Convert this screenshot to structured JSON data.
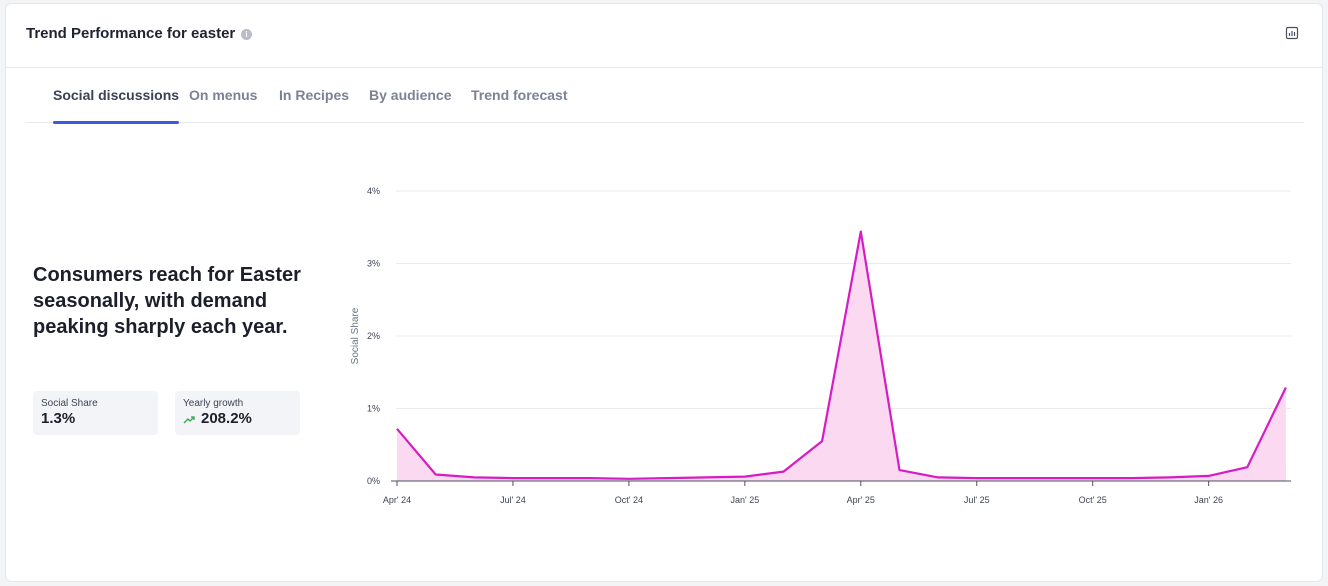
{
  "header": {
    "title": "Trend Performance for easter",
    "info_icon": "info-icon",
    "export_icon": "chart-export-icon"
  },
  "tabs": [
    {
      "label": "Social discussions",
      "active": true
    },
    {
      "label": "On menus",
      "active": false
    },
    {
      "label": "In Recipes",
      "active": false
    },
    {
      "label": "By audience",
      "active": false
    },
    {
      "label": "Trend forecast",
      "active": false
    }
  ],
  "insight": {
    "headline": "Consumers reach for Easter seasonally, with demand peaking sharply each year."
  },
  "stats": {
    "social_share": {
      "label": "Social Share",
      "value": "1.3%"
    },
    "yearly_growth": {
      "label": "Yearly growth",
      "value": "208.2%",
      "icon": "trend-up-icon",
      "color": "#2fa84f"
    }
  },
  "chart_data": {
    "type": "area",
    "title": "",
    "xlabel": "",
    "ylabel": "Social Share",
    "ylim": [
      0,
      4
    ],
    "yticks": [
      "0%",
      "1%",
      "2%",
      "3%",
      "4%"
    ],
    "xticks": [
      "Apr' 24",
      "Jul' 24",
      "Oct' 24",
      "Jan' 25",
      "Apr' 25",
      "Jul' 25",
      "Oct' 25",
      "Jan' 26"
    ],
    "x": [
      "Apr' 24",
      "May' 24",
      "Jun' 24",
      "Jul' 24",
      "Aug' 24",
      "Sep' 24",
      "Oct' 24",
      "Nov' 24",
      "Dec' 24",
      "Jan' 25",
      "Feb' 25",
      "Mar' 25",
      "Apr' 25",
      "May' 25",
      "Jun' 25",
      "Jul' 25",
      "Aug' 25",
      "Sep' 25",
      "Oct' 25",
      "Nov' 25",
      "Dec' 25",
      "Jan' 26",
      "Feb' 26",
      "Mar' 26"
    ],
    "series": [
      {
        "values": [
          0.72,
          0.09,
          0.05,
          0.04,
          0.04,
          0.04,
          0.03,
          0.04,
          0.05,
          0.06,
          0.13,
          0.55,
          3.44,
          0.15,
          0.05,
          0.04,
          0.04,
          0.04,
          0.04,
          0.04,
          0.05,
          0.07,
          0.19,
          1.29
        ],
        "color": "#d61cc4",
        "fill": "#fbd9f1"
      }
    ],
    "grid": true,
    "legend": "none"
  }
}
